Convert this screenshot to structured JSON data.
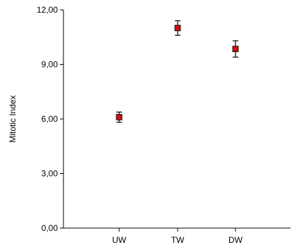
{
  "chart_data": {
    "type": "scatter",
    "title": "",
    "xlabel": "",
    "ylabel": "Mitotic Index",
    "categories": [
      "UW",
      "TW",
      "DW"
    ],
    "ylim": [
      0,
      12
    ],
    "yticks": [
      "0,00",
      "3,00",
      "6,00",
      "9,00",
      "12,00"
    ],
    "ytick_values": [
      0,
      3,
      6,
      9,
      12
    ],
    "series": [
      {
        "values": [
          6.1,
          11.0,
          9.85
        ],
        "error": [
          0.28,
          0.4,
          0.45
        ]
      }
    ],
    "grid": false,
    "legend": "none",
    "colors": {
      "marker_fill": "#cc1111",
      "marker_stroke": "#000000",
      "axis": "#000000"
    }
  }
}
